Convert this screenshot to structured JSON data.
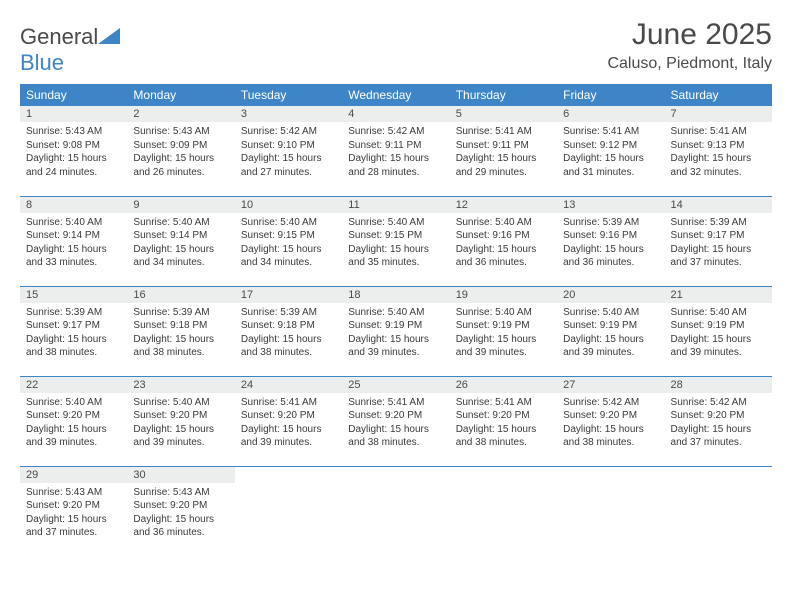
{
  "logo": {
    "part1": "General",
    "part2": "Blue"
  },
  "title": "June 2025",
  "location": "Caluso, Piedmont, Italy",
  "colors": {
    "header_bg": "#3d85c6",
    "header_text": "#ffffff",
    "daynum_bg": "#eceded",
    "text": "#4a4a4a",
    "border": "#3d85c6"
  },
  "weekdays": [
    "Sunday",
    "Monday",
    "Tuesday",
    "Wednesday",
    "Thursday",
    "Friday",
    "Saturday"
  ],
  "weeks": [
    [
      {
        "n": "1",
        "sr": "Sunrise: 5:43 AM",
        "ss": "Sunset: 9:08 PM",
        "dl": "Daylight: 15 hours and 24 minutes."
      },
      {
        "n": "2",
        "sr": "Sunrise: 5:43 AM",
        "ss": "Sunset: 9:09 PM",
        "dl": "Daylight: 15 hours and 26 minutes."
      },
      {
        "n": "3",
        "sr": "Sunrise: 5:42 AM",
        "ss": "Sunset: 9:10 PM",
        "dl": "Daylight: 15 hours and 27 minutes."
      },
      {
        "n": "4",
        "sr": "Sunrise: 5:42 AM",
        "ss": "Sunset: 9:11 PM",
        "dl": "Daylight: 15 hours and 28 minutes."
      },
      {
        "n": "5",
        "sr": "Sunrise: 5:41 AM",
        "ss": "Sunset: 9:11 PM",
        "dl": "Daylight: 15 hours and 29 minutes."
      },
      {
        "n": "6",
        "sr": "Sunrise: 5:41 AM",
        "ss": "Sunset: 9:12 PM",
        "dl": "Daylight: 15 hours and 31 minutes."
      },
      {
        "n": "7",
        "sr": "Sunrise: 5:41 AM",
        "ss": "Sunset: 9:13 PM",
        "dl": "Daylight: 15 hours and 32 minutes."
      }
    ],
    [
      {
        "n": "8",
        "sr": "Sunrise: 5:40 AM",
        "ss": "Sunset: 9:14 PM",
        "dl": "Daylight: 15 hours and 33 minutes."
      },
      {
        "n": "9",
        "sr": "Sunrise: 5:40 AM",
        "ss": "Sunset: 9:14 PM",
        "dl": "Daylight: 15 hours and 34 minutes."
      },
      {
        "n": "10",
        "sr": "Sunrise: 5:40 AM",
        "ss": "Sunset: 9:15 PM",
        "dl": "Daylight: 15 hours and 34 minutes."
      },
      {
        "n": "11",
        "sr": "Sunrise: 5:40 AM",
        "ss": "Sunset: 9:15 PM",
        "dl": "Daylight: 15 hours and 35 minutes."
      },
      {
        "n": "12",
        "sr": "Sunrise: 5:40 AM",
        "ss": "Sunset: 9:16 PM",
        "dl": "Daylight: 15 hours and 36 minutes."
      },
      {
        "n": "13",
        "sr": "Sunrise: 5:39 AM",
        "ss": "Sunset: 9:16 PM",
        "dl": "Daylight: 15 hours and 36 minutes."
      },
      {
        "n": "14",
        "sr": "Sunrise: 5:39 AM",
        "ss": "Sunset: 9:17 PM",
        "dl": "Daylight: 15 hours and 37 minutes."
      }
    ],
    [
      {
        "n": "15",
        "sr": "Sunrise: 5:39 AM",
        "ss": "Sunset: 9:17 PM",
        "dl": "Daylight: 15 hours and 38 minutes."
      },
      {
        "n": "16",
        "sr": "Sunrise: 5:39 AM",
        "ss": "Sunset: 9:18 PM",
        "dl": "Daylight: 15 hours and 38 minutes."
      },
      {
        "n": "17",
        "sr": "Sunrise: 5:39 AM",
        "ss": "Sunset: 9:18 PM",
        "dl": "Daylight: 15 hours and 38 minutes."
      },
      {
        "n": "18",
        "sr": "Sunrise: 5:40 AM",
        "ss": "Sunset: 9:19 PM",
        "dl": "Daylight: 15 hours and 39 minutes."
      },
      {
        "n": "19",
        "sr": "Sunrise: 5:40 AM",
        "ss": "Sunset: 9:19 PM",
        "dl": "Daylight: 15 hours and 39 minutes."
      },
      {
        "n": "20",
        "sr": "Sunrise: 5:40 AM",
        "ss": "Sunset: 9:19 PM",
        "dl": "Daylight: 15 hours and 39 minutes."
      },
      {
        "n": "21",
        "sr": "Sunrise: 5:40 AM",
        "ss": "Sunset: 9:19 PM",
        "dl": "Daylight: 15 hours and 39 minutes."
      }
    ],
    [
      {
        "n": "22",
        "sr": "Sunrise: 5:40 AM",
        "ss": "Sunset: 9:20 PM",
        "dl": "Daylight: 15 hours and 39 minutes."
      },
      {
        "n": "23",
        "sr": "Sunrise: 5:40 AM",
        "ss": "Sunset: 9:20 PM",
        "dl": "Daylight: 15 hours and 39 minutes."
      },
      {
        "n": "24",
        "sr": "Sunrise: 5:41 AM",
        "ss": "Sunset: 9:20 PM",
        "dl": "Daylight: 15 hours and 39 minutes."
      },
      {
        "n": "25",
        "sr": "Sunrise: 5:41 AM",
        "ss": "Sunset: 9:20 PM",
        "dl": "Daylight: 15 hours and 38 minutes."
      },
      {
        "n": "26",
        "sr": "Sunrise: 5:41 AM",
        "ss": "Sunset: 9:20 PM",
        "dl": "Daylight: 15 hours and 38 minutes."
      },
      {
        "n": "27",
        "sr": "Sunrise: 5:42 AM",
        "ss": "Sunset: 9:20 PM",
        "dl": "Daylight: 15 hours and 38 minutes."
      },
      {
        "n": "28",
        "sr": "Sunrise: 5:42 AM",
        "ss": "Sunset: 9:20 PM",
        "dl": "Daylight: 15 hours and 37 minutes."
      }
    ],
    [
      {
        "n": "29",
        "sr": "Sunrise: 5:43 AM",
        "ss": "Sunset: 9:20 PM",
        "dl": "Daylight: 15 hours and 37 minutes."
      },
      {
        "n": "30",
        "sr": "Sunrise: 5:43 AM",
        "ss": "Sunset: 9:20 PM",
        "dl": "Daylight: 15 hours and 36 minutes."
      },
      null,
      null,
      null,
      null,
      null
    ]
  ]
}
